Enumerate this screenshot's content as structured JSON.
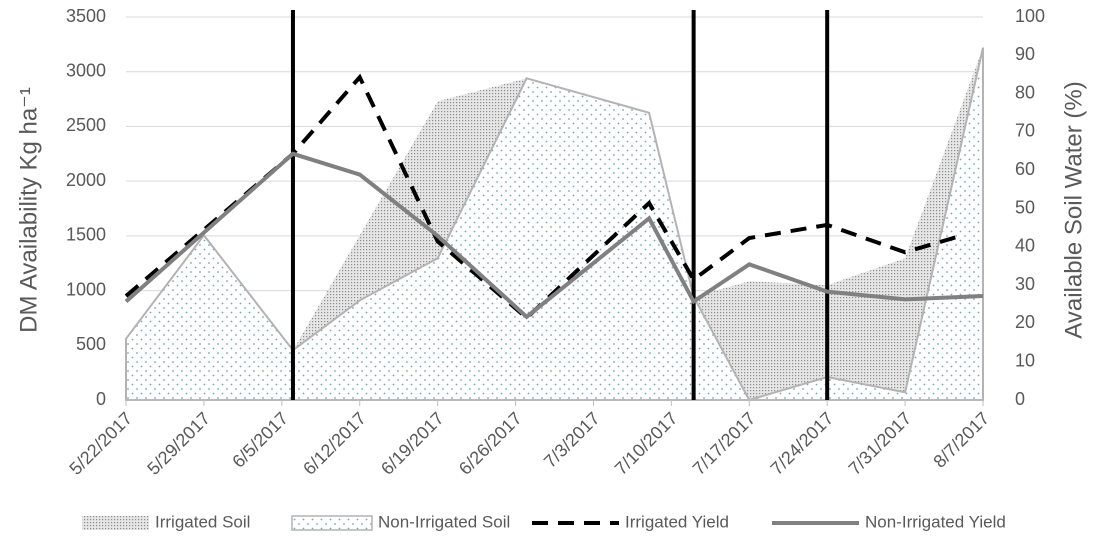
{
  "chart_data": {
    "type": "line",
    "y_label": "DM Availability Kg ha⁻¹",
    "y2_label": "Available Soil Water (%)",
    "xlim": [
      "5/22/2017",
      "8/7/2017"
    ],
    "xticks": [
      "5/22/2017",
      "5/29/2017",
      "6/5/2017",
      "6/12/2017",
      "6/19/2017",
      "6/26/2017",
      "7/3/2017",
      "7/10/2017",
      "7/17/2017",
      "7/24/2017",
      "7/31/2017",
      "8/7/2017"
    ],
    "ylim": [
      0,
      3500
    ],
    "yticks": [
      0,
      500,
      1000,
      1500,
      2000,
      2500,
      3000,
      3500
    ],
    "y2lim": [
      0,
      100
    ],
    "y2ticks": [
      0,
      10,
      20,
      30,
      40,
      50,
      60,
      70,
      80,
      90,
      100
    ],
    "grid": true,
    "vlines": [
      "6/6/2017",
      "7/12/2017",
      "7/24/2017"
    ],
    "vline_color": "#000000",
    "series": [
      {
        "name": "Irrigated Soil",
        "style": "area",
        "axis": "y2",
        "color": "#a6a6a6",
        "x": [
          "5/22/2017",
          "5/29/2017",
          "6/6/2017",
          "6/19/2017",
          "6/27/2017",
          "7/8/2017",
          "7/12/2017",
          "7/17/2017",
          "7/24/2017",
          "7/31/2017",
          "8/7/2017"
        ],
        "values": [
          16,
          43,
          13,
          78,
          84,
          75,
          27,
          31,
          30,
          37,
          92
        ]
      },
      {
        "name": "Non-Irrigated Soil",
        "style": "dotted-area",
        "axis": "y2",
        "color": "#6fa8b8",
        "x": [
          "5/22/2017",
          "5/29/2017",
          "6/6/2017",
          "6/12/2017",
          "6/19/2017",
          "6/27/2017",
          "7/8/2017",
          "7/12/2017",
          "7/17/2017",
          "7/24/2017",
          "7/31/2017",
          "8/7/2017"
        ],
        "values": [
          16,
          43,
          13,
          26,
          37,
          84,
          75,
          27,
          0,
          6,
          2,
          92
        ]
      },
      {
        "name": "Irrigated Yield",
        "style": "dashed",
        "color": "#000000",
        "x": [
          "5/22/2017",
          "6/6/2017",
          "6/12/2017",
          "6/19/2017",
          "6/27/2017",
          "7/8/2017",
          "7/12/2017",
          "7/17/2017",
          "7/24/2017",
          "7/31/2017",
          "8/5/2017"
        ],
        "values": [
          950,
          2250,
          2950,
          1450,
          750,
          1800,
          1100,
          1480,
          1600,
          1350,
          1500
        ]
      },
      {
        "name": "Non-Irrigated Yield",
        "style": "solid",
        "color": "#808080",
        "x": [
          "5/22/2017",
          "6/6/2017",
          "6/12/2017",
          "6/19/2017",
          "6/27/2017",
          "7/8/2017",
          "7/12/2017",
          "7/17/2017",
          "7/24/2017",
          "7/31/2017",
          "8/7/2017"
        ],
        "values": [
          900,
          2250,
          2060,
          1500,
          760,
          1660,
          900,
          1240,
          990,
          920,
          950
        ]
      }
    ]
  }
}
